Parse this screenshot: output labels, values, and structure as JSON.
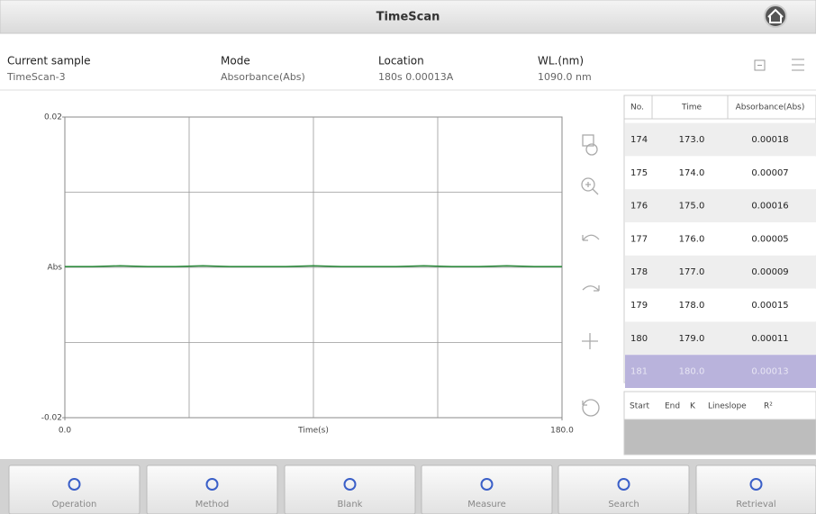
{
  "header": {
    "title": "TimeScan"
  },
  "info": [
    {
      "label": "Current sample",
      "value": "TimeScan-3"
    },
    {
      "label": "Mode",
      "value": "Absorbance(Abs)"
    },
    {
      "label": "Location",
      "value": "180s 0.00013A"
    },
    {
      "label": "WL.(nm)",
      "value": "1090.0 nm"
    }
  ],
  "chart_data": {
    "type": "line",
    "ylabel": "Abs",
    "xlabel": "Time(s)",
    "xlim": [
      0,
      180
    ],
    "ylim": [
      -0.02,
      0.02
    ],
    "xticks": [
      {
        "value": 0,
        "label": "0.0"
      },
      {
        "value": 180,
        "label": "180.0"
      }
    ],
    "yticks": [
      0.02,
      -0.02
    ],
    "x": [
      0,
      10,
      20,
      30,
      40,
      50,
      60,
      70,
      80,
      90,
      100,
      110,
      120,
      130,
      140,
      150,
      160,
      170,
      180
    ],
    "series": [
      {
        "color": "#2e8b3e",
        "values": [
          0.0001,
          0.0001,
          0.0002,
          0.0001,
          0.0001,
          0.0002,
          0.0001,
          0.0001,
          0.0001,
          0.0002,
          0.0001,
          0.0001,
          0.0001,
          0.0002,
          0.0001,
          0.0001,
          0.0002,
          0.0001,
          0.0001
        ]
      }
    ]
  },
  "table": {
    "columns": [
      "No.",
      "Time",
      "Absorbance(Abs)"
    ],
    "rows": [
      [
        "174",
        "173.0",
        "0.00018"
      ],
      [
        "175",
        "174.0",
        "0.00007"
      ],
      [
        "176",
        "175.0",
        "0.00016"
      ],
      [
        "177",
        "176.0",
        "0.00005"
      ],
      [
        "178",
        "177.0",
        "0.00009"
      ],
      [
        "179",
        "178.0",
        "0.00015"
      ],
      [
        "180",
        "179.0",
        "0.00011"
      ],
      [
        "181",
        "180.0",
        "0.00013"
      ]
    ],
    "selected_row": 7
  },
  "fit_table": {
    "columns": [
      "Start",
      "End",
      "K",
      "Lineslope",
      "R²"
    ]
  },
  "toolbar": [
    "Operation",
    "Method",
    "Blank",
    "Measure",
    "Search",
    "Retrieval"
  ]
}
